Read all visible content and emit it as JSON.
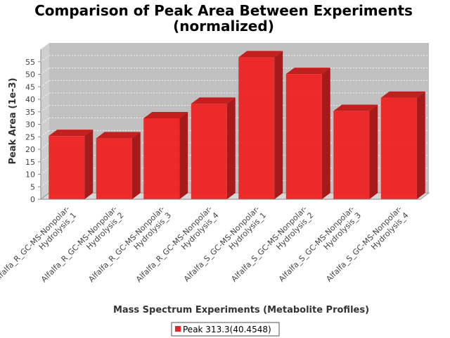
{
  "chart_data": {
    "type": "bar",
    "title_lines": [
      "Comparison of Peak Area Between Experiments",
      "(normalized)"
    ],
    "xlabel": "Mass Spectrum Experiments (Metabolite Profiles)",
    "ylabel": "Peak Area (1e-3)",
    "ylim": [
      0,
      60
    ],
    "yticks": [
      0,
      5,
      10,
      15,
      20,
      25,
      30,
      35,
      40,
      45,
      50,
      55
    ],
    "grid": true,
    "style": "3d",
    "categories": [
      [
        "Alfalfa_R_GC-MS-Nonpolar-",
        "Hydrolysis_1"
      ],
      [
        "Alfalfa_R_GC-MS-Nonpolar-",
        "Hydrolysis_2"
      ],
      [
        "Alfalfa_R_GC-MS-Nonpolar-",
        "Hydrolysis_3"
      ],
      [
        "Alfalfa_R_GC-MS-Nonpolar-",
        "Hydrolysis_4"
      ],
      [
        "Alfalfa_S_GC-MS-Nonpolar-",
        "Hydrolysis_1"
      ],
      [
        "Alfalfa_S_GC-MS-Nonpolar-",
        "Hydrolysis_2"
      ],
      [
        "Alfalfa_S_GC-MS-Nonpolar-",
        "Hydrolysis_3"
      ],
      [
        "Alfalfa_S_GC-MS-Nonpolar-",
        "Hydrolysis_4"
      ]
    ],
    "series": [
      {
        "name": "Peak 313.3(40.4548)",
        "color": "#ee2222",
        "values": [
          25.3,
          24.4,
          32.4,
          38.2,
          56.8,
          50.1,
          35.3,
          40.6
        ]
      }
    ],
    "legend_position": "bottom"
  }
}
